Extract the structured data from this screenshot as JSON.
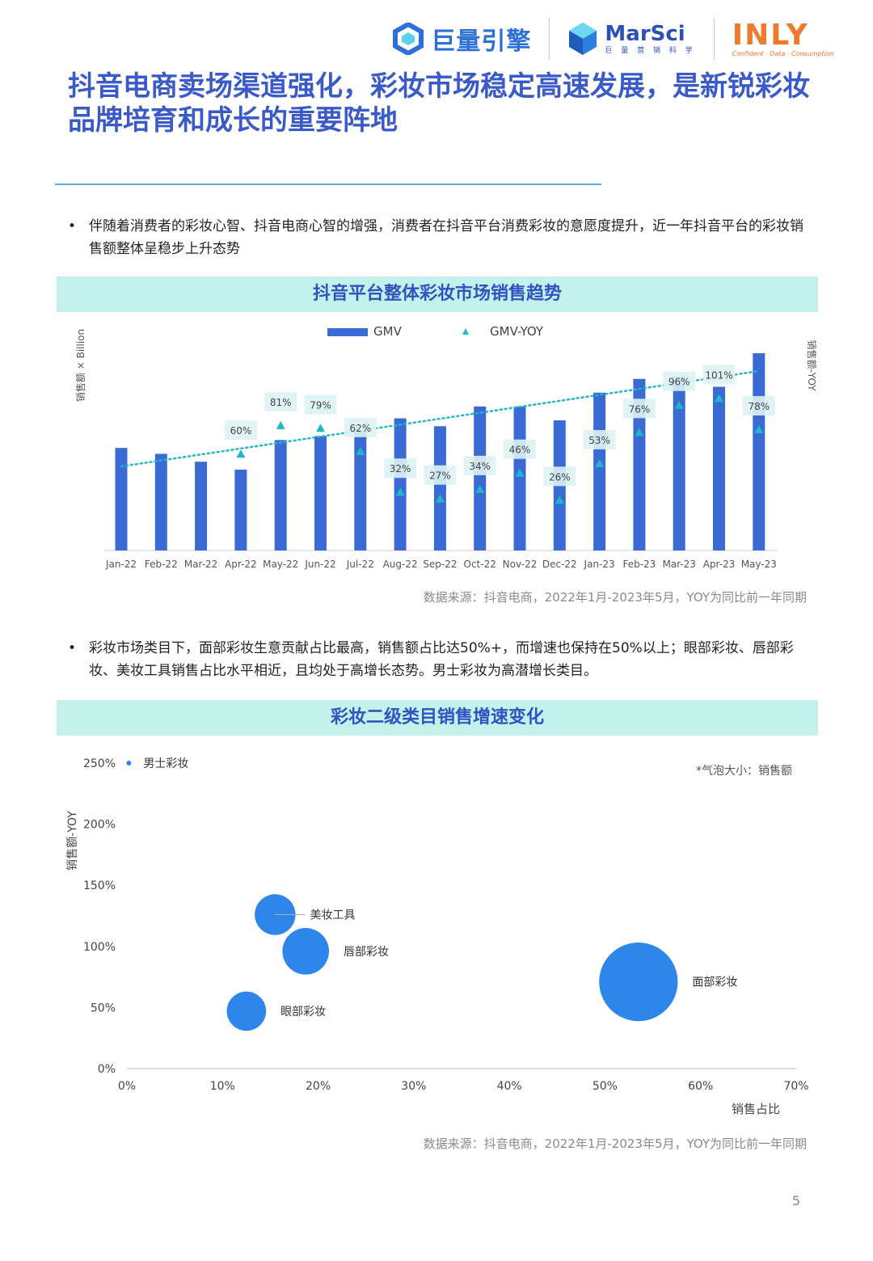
{
  "header": {
    "logos": [
      {
        "name": "巨量引擎"
      },
      {
        "name": "MarSci",
        "sub": "巨 量 营 销 科 学"
      },
      {
        "name": "INLY",
        "sub": "Confident · Data · Consumption"
      }
    ]
  },
  "title": "抖音电商卖场渠道强化，彩妆市场稳定高速发展，是新锐彩妆品牌培育和成长的重要阵地",
  "bullets": [
    "伴随着消费者的彩妆心智、抖音电商心智的增强，消费者在抖音平台消费彩妆的意愿度提升，近一年抖音平台的彩妆销售额整体呈稳步上升态势",
    "彩妆市场类目下，面部彩妆生意贡献占比最高，销售额占比达50%+，而增速也保持在50%以上；眼部彩妆、唇部彩妆、美妆工具销售占比水平相近，且均处于高增长态势。男士彩妆为高潜增长类目。"
  ],
  "colors": {
    "bar": "#3a6ad4",
    "yoy": "#1fb8c8",
    "bubble": "#2f86ea",
    "title": "#3a5ac8",
    "section_bg": "#c5f1ec"
  },
  "sections": [
    {
      "title": "抖音平台整体彩妆市场销售趋势",
      "source": "数据来源：抖音电商，2022年1月-2023年5月，YOY为同比前一年同期"
    },
    {
      "title": "彩妆二级类目销售增速变化",
      "source": "数据来源：抖音电商，2022年1月-2023年5月，YOY为同比前一年同期"
    }
  ],
  "page_number": "5",
  "chart_data": [
    {
      "type": "bar",
      "legend": {
        "gmv": "GMV",
        "yoy": "GMV-YOY"
      },
      "ylabel_left": "销售额 × Billion",
      "ylabel_right": "销售额-YOY",
      "categories": [
        "Jan-22",
        "Feb-22",
        "Mar-22",
        "Apr-22",
        "May-22",
        "Jun-22",
        "Jul-22",
        "Aug-22",
        "Sep-22",
        "Oct-22",
        "Nov-22",
        "Dec-22",
        "Jan-23",
        "Feb-23",
        "Mar-23",
        "Apr-23",
        "May-23"
      ],
      "gmv_relative": [
        52,
        49,
        45,
        41,
        56,
        58,
        61,
        67,
        63,
        73,
        73,
        66,
        80,
        87,
        88,
        83,
        100
      ],
      "yoy_values": [
        null,
        null,
        null,
        60,
        81,
        79,
        62,
        32,
        27,
        34,
        46,
        26,
        53,
        76,
        96,
        101,
        78
      ],
      "yoy_labels": [
        "",
        "",
        "",
        "60%",
        "81%",
        "79%",
        "62%",
        "32%",
        "27%",
        "34%",
        "46%",
        "26%",
        "53%",
        "76%",
        "96%",
        "101%",
        "78%"
      ],
      "trendline": true
    },
    {
      "type": "scatter",
      "note": "*气泡大小：销售额",
      "xlabel": "销售占比",
      "ylabel": "销售额-YOY",
      "xlim": [
        0,
        70
      ],
      "ylim": [
        0,
        250
      ],
      "x_ticks": [
        "0%",
        "10%",
        "20%",
        "30%",
        "40%",
        "50%",
        "60%",
        "70%"
      ],
      "y_ticks": [
        "0%",
        "50%",
        "100%",
        "150%",
        "200%",
        "250%"
      ],
      "points": [
        {
          "label": "男士彩妆",
          "x": 0.2,
          "y": 250,
          "size": 0.5
        },
        {
          "label": "美妆工具",
          "x": 15.5,
          "y": 126,
          "size": 14
        },
        {
          "label": "唇部彩妆",
          "x": 18.7,
          "y": 96,
          "size": 16
        },
        {
          "label": "眼部彩妆",
          "x": 12.5,
          "y": 47,
          "size": 13.5
        },
        {
          "label": "面部彩妆",
          "x": 53.5,
          "y": 71,
          "size": 27
        }
      ]
    }
  ]
}
